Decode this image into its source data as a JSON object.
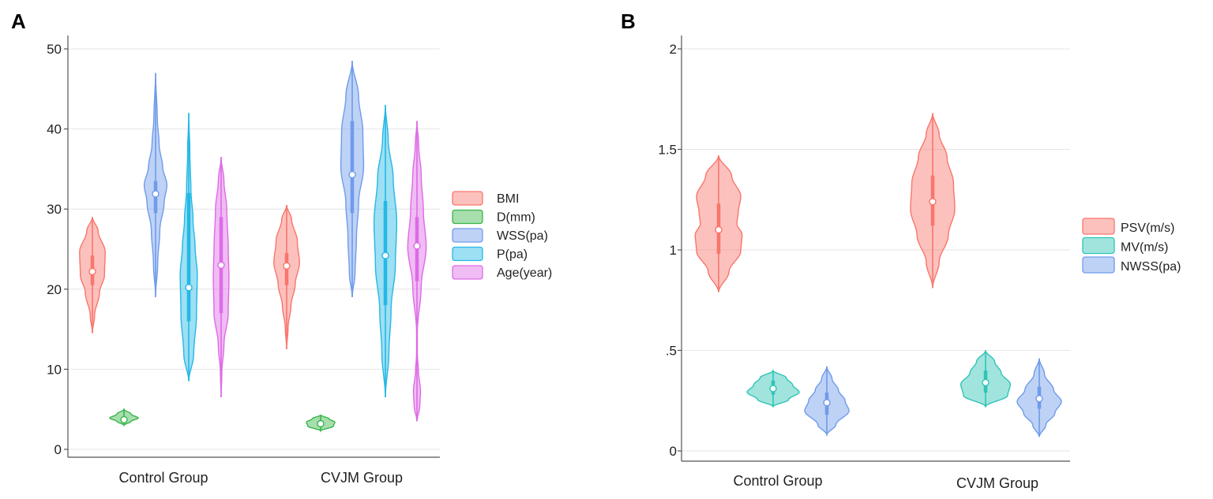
{
  "figure": {
    "panels": [
      "A",
      "B"
    ]
  },
  "chart_data": [
    {
      "type": "violin",
      "panel": "A",
      "title": "",
      "xlabel": "",
      "ylabel": "",
      "ylim": [
        -1,
        51
      ],
      "yticks": [
        0,
        10,
        20,
        30,
        40,
        50
      ],
      "ytick_labels": [
        "0",
        "10",
        "20",
        "30",
        "40",
        "50"
      ],
      "grid": true,
      "legend_position": "right",
      "categories": [
        "Control Group",
        "CVJM Group"
      ],
      "series": [
        {
          "name": "BMI",
          "color": "#f8766d",
          "groups": [
            {
              "min": 14.5,
              "max": 29,
              "median": 22.2,
              "q1": 20.5,
              "q3": 24.2,
              "profile": [
                [
                  0,
                  0
                ],
                [
                  0.15,
                  0.15
                ],
                [
                  0.35,
                  0.5
                ],
                [
                  0.5,
                  0.85
                ],
                [
                  0.7,
                  0.9
                ],
                [
                  0.88,
                  0.4
                ],
                [
                  1,
                  0
                ]
              ]
            },
            {
              "min": 12.5,
              "max": 30.5,
              "median": 22.9,
              "q1": 20.5,
              "q3": 24.5,
              "profile": [
                [
                  0,
                  0
                ],
                [
                  0.15,
                  0.1
                ],
                [
                  0.3,
                  0.3
                ],
                [
                  0.45,
                  0.6
                ],
                [
                  0.6,
                  0.9
                ],
                [
                  0.75,
                  0.75
                ],
                [
                  0.9,
                  0.35
                ],
                [
                  1,
                  0
                ]
              ]
            }
          ]
        },
        {
          "name": "D(mm)",
          "color": "#39b54a",
          "groups": [
            {
              "min": 3.0,
              "max": 5.0,
              "median": 3.7,
              "q1": 3.4,
              "q3": 4.0,
              "profile": [
                [
                  0,
                  0
                ],
                [
                  0.25,
                  0.5
                ],
                [
                  0.45,
                  1
                ],
                [
                  0.7,
                  0.5
                ],
                [
                  1,
                  0
                ]
              ]
            },
            {
              "min": 2.3,
              "max": 4.3,
              "median": 3.2,
              "q1": 2.9,
              "q3": 3.6,
              "profile": [
                [
                  0,
                  0
                ],
                [
                  0.3,
                  0.9
                ],
                [
                  0.55,
                  1
                ],
                [
                  0.75,
                  0.6
                ],
                [
                  1,
                  0
                ]
              ]
            }
          ]
        },
        {
          "name": "WSS(pa)",
          "color": "#6f9bea",
          "groups": [
            {
              "min": 19,
              "max": 47,
              "median": 31.9,
              "q1": 29.5,
              "q3": 33.5,
              "profile": [
                [
                  0,
                  0
                ],
                [
                  0.15,
                  0.15
                ],
                [
                  0.3,
                  0.3
                ],
                [
                  0.42,
                  0.6
                ],
                [
                  0.5,
                  0.8
                ],
                [
                  0.58,
                  0.5
                ],
                [
                  0.68,
                  0.25
                ],
                [
                  0.8,
                  0.12
                ],
                [
                  1,
                  0
                ]
              ]
            },
            {
              "min": 19,
              "max": 48.5,
              "median": 34.3,
              "q1": 29.5,
              "q3": 41.0,
              "profile": [
                [
                  0,
                  0
                ],
                [
                  0.1,
                  0.2
                ],
                [
                  0.25,
                  0.3
                ],
                [
                  0.4,
                  0.45
                ],
                [
                  0.55,
                  0.8
                ],
                [
                  0.7,
                  0.75
                ],
                [
                  0.85,
                  0.45
                ],
                [
                  1,
                  0
                ]
              ]
            }
          ]
        },
        {
          "name": "P(pa)",
          "color": "#25b8e5",
          "groups": [
            {
              "min": 8.5,
              "max": 42,
              "median": 20.2,
              "q1": 16,
              "q3": 32,
              "profile": [
                [
                  0,
                  0
                ],
                [
                  0.1,
                  0.35
                ],
                [
                  0.25,
                  0.55
                ],
                [
                  0.4,
                  0.6
                ],
                [
                  0.5,
                  0.45
                ],
                [
                  0.6,
                  0.3
                ],
                [
                  0.72,
                  0.15
                ],
                [
                  0.85,
                  0.08
                ],
                [
                  1,
                  0
                ]
              ]
            },
            {
              "min": 6.5,
              "max": 43,
              "median": 24.2,
              "q1": 18,
              "q3": 31,
              "profile": [
                [
                  0,
                  0
                ],
                [
                  0.15,
                  0.25
                ],
                [
                  0.3,
                  0.4
                ],
                [
                  0.45,
                  0.7
                ],
                [
                  0.6,
                  0.8
                ],
                [
                  0.75,
                  0.55
                ],
                [
                  0.88,
                  0.2
                ],
                [
                  1,
                  0
                ]
              ]
            }
          ]
        },
        {
          "name": "Age(year)",
          "color": "#dd6be6",
          "groups": [
            {
              "min": 6.5,
              "max": 36.5,
              "median": 23,
              "q1": 17,
              "q3": 29,
              "profile": [
                [
                  0,
                  0
                ],
                [
                  0.1,
                  0.05
                ],
                [
                  0.22,
                  0.2
                ],
                [
                  0.35,
                  0.5
                ],
                [
                  0.5,
                  0.55
                ],
                [
                  0.62,
                  0.5
                ],
                [
                  0.78,
                  0.4
                ],
                [
                  0.9,
                  0.2
                ],
                [
                  1,
                  0
                ]
              ]
            },
            {
              "min": 3.5,
              "max": 41,
              "median": 25.4,
              "q1": 21,
              "q3": 29,
              "profile": [
                [
                  0,
                  0
                ],
                [
                  0.05,
                  0.2
                ],
                [
                  0.1,
                  0.25
                ],
                [
                  0.17,
                  0.1
                ],
                [
                  0.22,
                  0.03
                ],
                [
                  0.3,
                  0.03
                ],
                [
                  0.45,
                  0.3
                ],
                [
                  0.58,
                  0.65
                ],
                [
                  0.7,
                  0.45
                ],
                [
                  0.82,
                  0.3
                ],
                [
                  0.92,
                  0.12
                ],
                [
                  1,
                  0
                ]
              ]
            }
          ]
        }
      ]
    },
    {
      "type": "violin",
      "panel": "B",
      "title": "",
      "xlabel": "",
      "ylabel": "",
      "ylim": [
        -0.02,
        2.04
      ],
      "yticks": [
        0,
        0.5,
        1,
        1.5,
        2
      ],
      "ytick_labels": [
        "0",
        ".5",
        "1",
        "1.5",
        "2"
      ],
      "grid": true,
      "legend_position": "right",
      "categories": [
        "Control Group",
        "CVJM Group"
      ],
      "series": [
        {
          "name": "PSV(m/s)",
          "color": "#f8766d",
          "groups": [
            {
              "min": 0.79,
              "max": 1.47,
              "median": 1.1,
              "q1": 0.98,
              "q3": 1.23,
              "profile": [
                [
                  0,
                  0
                ],
                [
                  0.15,
                  0.4
                ],
                [
                  0.3,
                  0.85
                ],
                [
                  0.42,
                  0.9
                ],
                [
                  0.5,
                  0.7
                ],
                [
                  0.58,
                  0.75
                ],
                [
                  0.7,
                  0.85
                ],
                [
                  0.85,
                  0.5
                ],
                [
                  1,
                  0
                ]
              ]
            },
            {
              "min": 0.81,
              "max": 1.68,
              "median": 1.24,
              "q1": 1.12,
              "q3": 1.37,
              "profile": [
                [
                  0,
                  0
                ],
                [
                  0.15,
                  0.25
                ],
                [
                  0.3,
                  0.6
                ],
                [
                  0.45,
                  0.85
                ],
                [
                  0.6,
                  0.8
                ],
                [
                  0.75,
                  0.55
                ],
                [
                  0.88,
                  0.25
                ],
                [
                  1,
                  0
                ]
              ]
            }
          ]
        },
        {
          "name": "MV(m/s)",
          "color": "#2ec4b6",
          "groups": [
            {
              "min": 0.22,
              "max": 0.4,
              "median": 0.31,
              "q1": 0.28,
              "q3": 0.35,
              "profile": [
                [
                  0,
                  0
                ],
                [
                  0.2,
                  0.6
                ],
                [
                  0.4,
                  1
                ],
                [
                  0.6,
                  0.75
                ],
                [
                  0.8,
                  0.5
                ],
                [
                  1,
                  0
                ]
              ]
            },
            {
              "min": 0.22,
              "max": 0.5,
              "median": 0.34,
              "q1": 0.29,
              "q3": 0.4,
              "profile": [
                [
                  0,
                  0
                ],
                [
                  0.2,
                  0.85
                ],
                [
                  0.4,
                  0.95
                ],
                [
                  0.6,
                  0.6
                ],
                [
                  0.8,
                  0.35
                ],
                [
                  1,
                  0
                ]
              ]
            }
          ]
        },
        {
          "name": "NWSS(pa)",
          "color": "#6f9bea",
          "groups": [
            {
              "min": 0.08,
              "max": 0.42,
              "median": 0.24,
              "q1": 0.18,
              "q3": 0.29,
              "profile": [
                [
                  0,
                  0
                ],
                [
                  0.15,
                  0.35
                ],
                [
                  0.35,
                  0.85
                ],
                [
                  0.5,
                  0.7
                ],
                [
                  0.65,
                  0.45
                ],
                [
                  0.82,
                  0.2
                ],
                [
                  1,
                  0
                ]
              ]
            },
            {
              "min": 0.07,
              "max": 0.46,
              "median": 0.26,
              "q1": 0.21,
              "q3": 0.32,
              "profile": [
                [
                  0,
                  0
                ],
                [
                  0.15,
                  0.25
                ],
                [
                  0.3,
                  0.6
                ],
                [
                  0.45,
                  0.85
                ],
                [
                  0.6,
                  0.55
                ],
                [
                  0.8,
                  0.2
                ],
                [
                  1,
                  0
                ]
              ]
            }
          ]
        }
      ]
    }
  ]
}
